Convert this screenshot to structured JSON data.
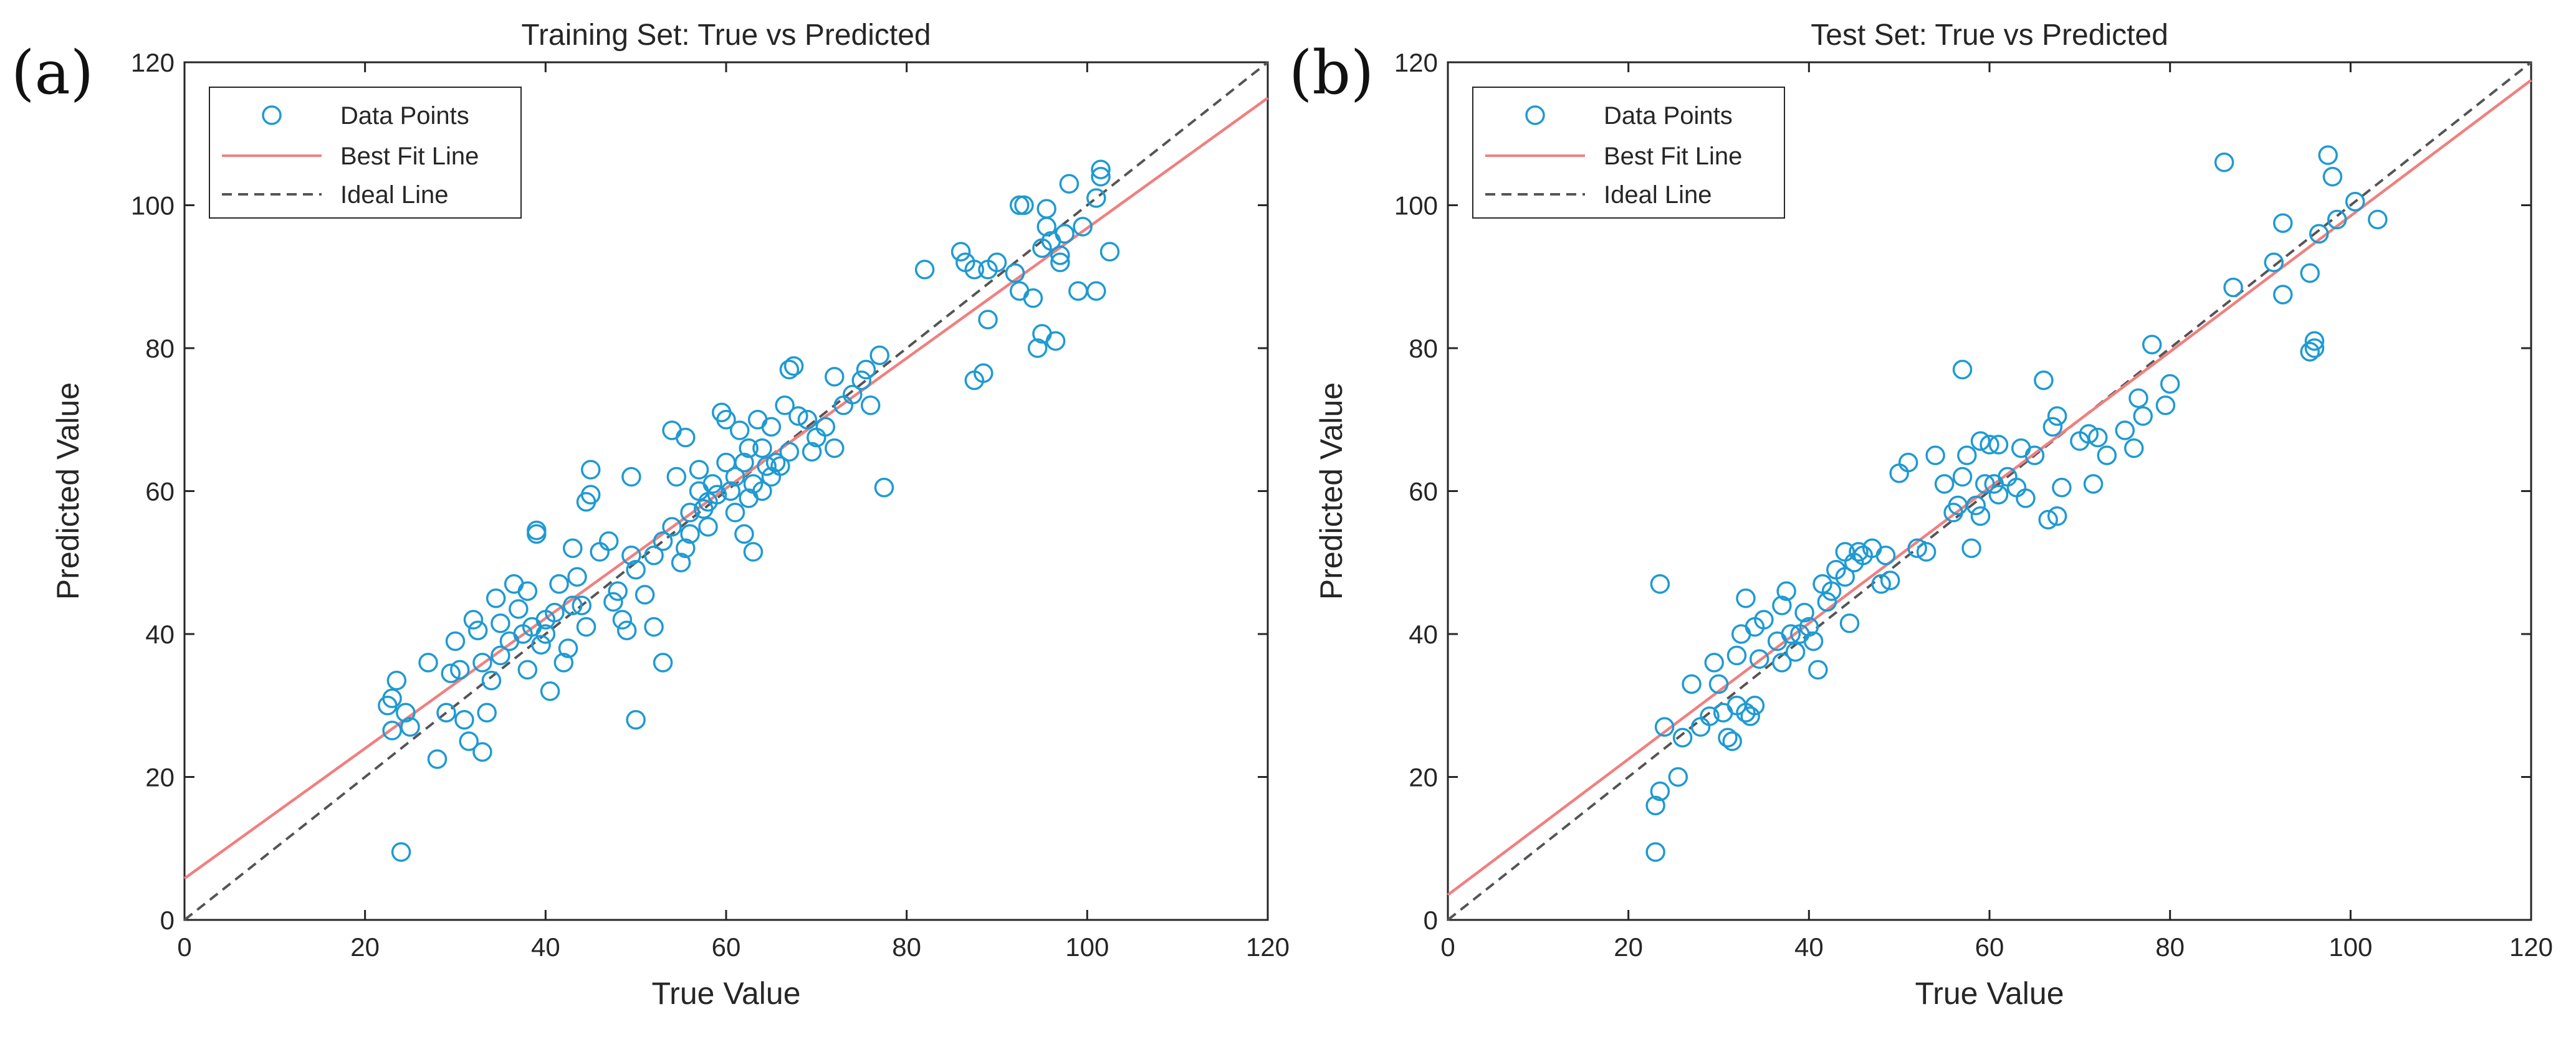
{
  "chart_data": [
    {
      "type": "scatter",
      "panel_label": "(a)",
      "title": "Training Set: True vs Predicted",
      "xlabel": "True Value",
      "ylabel": "Predicted Value",
      "xlim": [
        0,
        120
      ],
      "ylim": [
        0,
        120
      ],
      "xticks": [
        0,
        20,
        40,
        60,
        80,
        100,
        120
      ],
      "yticks": [
        0,
        20,
        40,
        60,
        80,
        100,
        120
      ],
      "legend": {
        "position": "top-left",
        "entries": [
          "Data Points",
          "Best Fit Line",
          "Ideal Line"
        ]
      },
      "colors": {
        "points": "#1f9ad2",
        "best_fit": "#f08080",
        "ideal": "#555555"
      },
      "best_fit": {
        "intercept": 5.8,
        "slope": 0.91
      },
      "ideal": {
        "intercept": 0,
        "slope": 1
      },
      "points": [
        [
          23,
          31
        ],
        [
          22.5,
          30
        ],
        [
          23.5,
          33.5
        ],
        [
          24.5,
          29
        ],
        [
          25,
          27
        ],
        [
          23,
          26.5
        ],
        [
          24,
          9.5
        ],
        [
          27,
          36
        ],
        [
          28,
          22.5
        ],
        [
          29,
          29
        ],
        [
          29.5,
          34.5
        ],
        [
          30,
          39
        ],
        [
          30.5,
          35
        ],
        [
          31,
          28
        ],
        [
          31.5,
          25
        ],
        [
          32,
          42
        ],
        [
          32.5,
          40.5
        ],
        [
          33,
          36
        ],
        [
          33,
          23.5
        ],
        [
          33.5,
          29
        ],
        [
          34,
          33.5
        ],
        [
          34.5,
          45
        ],
        [
          35,
          41.5
        ],
        [
          35,
          37
        ],
        [
          36,
          39
        ],
        [
          36.5,
          47
        ],
        [
          37,
          43.5
        ],
        [
          37.5,
          40
        ],
        [
          38,
          35
        ],
        [
          38,
          46
        ],
        [
          38.5,
          41
        ],
        [
          39,
          54
        ],
        [
          39,
          54.5
        ],
        [
          39.5,
          38.5
        ],
        [
          40,
          42
        ],
        [
          40,
          40
        ],
        [
          40.5,
          32
        ],
        [
          41,
          43
        ],
        [
          41.5,
          47
        ],
        [
          42,
          36
        ],
        [
          42.5,
          38
        ],
        [
          43,
          44
        ],
        [
          43,
          52
        ],
        [
          43.5,
          48
        ],
        [
          44,
          44
        ],
        [
          44.5,
          41
        ],
        [
          44.5,
          58.5
        ],
        [
          45,
          63
        ],
        [
          45,
          59.5
        ],
        [
          46,
          51.5
        ],
        [
          47,
          53
        ],
        [
          47.5,
          44.5
        ],
        [
          48,
          46
        ],
        [
          48.5,
          42
        ],
        [
          49,
          40.5
        ],
        [
          49.5,
          51
        ],
        [
          49.5,
          62
        ],
        [
          50,
          49
        ],
        [
          50,
          28
        ],
        [
          51,
          45.5
        ],
        [
          52,
          41
        ],
        [
          52,
          51
        ],
        [
          53,
          53
        ],
        [
          53,
          36
        ],
        [
          54,
          55
        ],
        [
          54,
          68.5
        ],
        [
          54.5,
          62
        ],
        [
          55,
          50
        ],
        [
          55.5,
          52
        ],
        [
          55.5,
          67.5
        ],
        [
          56,
          57
        ],
        [
          56,
          54
        ],
        [
          57,
          60
        ],
        [
          57,
          63
        ],
        [
          57.5,
          57.5
        ],
        [
          58,
          55
        ],
        [
          58,
          58.5
        ],
        [
          58.5,
          61
        ],
        [
          59,
          59.5
        ],
        [
          59.5,
          71
        ],
        [
          60,
          70
        ],
        [
          60,
          64
        ],
        [
          60.5,
          60
        ],
        [
          61,
          57
        ],
        [
          61,
          62
        ],
        [
          61.5,
          68.5
        ],
        [
          62,
          64
        ],
        [
          62,
          54
        ],
        [
          62.5,
          59
        ],
        [
          62.5,
          66
        ],
        [
          63,
          61
        ],
        [
          63,
          51.5
        ],
        [
          63.5,
          70
        ],
        [
          64,
          66
        ],
        [
          64,
          60
        ],
        [
          64.5,
          63.5
        ],
        [
          65,
          62
        ],
        [
          65,
          69
        ],
        [
          65.5,
          64
        ],
        [
          66,
          63.5
        ],
        [
          66.5,
          72
        ],
        [
          67,
          77
        ],
        [
          67,
          65.5
        ],
        [
          67.5,
          77.5
        ],
        [
          68,
          70.5
        ],
        [
          69,
          70
        ],
        [
          69.5,
          65.5
        ],
        [
          70,
          67.5
        ],
        [
          71,
          69
        ],
        [
          72,
          66
        ],
        [
          72,
          76
        ],
        [
          73,
          72
        ],
        [
          74,
          73.5
        ],
        [
          75,
          75.5
        ],
        [
          75.5,
          77
        ],
        [
          76,
          72
        ],
        [
          77,
          79
        ],
        [
          77.5,
          60.5
        ],
        [
          82,
          91
        ],
        [
          86,
          93.5
        ],
        [
          86.5,
          92
        ],
        [
          87.5,
          91
        ],
        [
          87.5,
          75.5
        ],
        [
          88.5,
          76.5
        ],
        [
          89,
          84
        ],
        [
          89,
          91
        ],
        [
          90,
          92
        ],
        [
          92,
          90.5
        ],
        [
          92.5,
          88
        ],
        [
          92.5,
          100
        ],
        [
          93,
          100
        ],
        [
          94,
          87
        ],
        [
          94.5,
          80
        ],
        [
          95,
          82
        ],
        [
          95,
          94
        ],
        [
          95.5,
          97
        ],
        [
          95.5,
          99.5
        ],
        [
          96,
          95
        ],
        [
          96.5,
          81
        ],
        [
          97,
          93
        ],
        [
          97,
          92
        ],
        [
          97.5,
          96
        ],
        [
          98,
          103
        ],
        [
          99,
          88
        ],
        [
          99.5,
          97
        ],
        [
          101,
          88
        ],
        [
          101,
          101
        ],
        [
          101.5,
          105
        ],
        [
          101.5,
          104
        ],
        [
          102.5,
          93.5
        ]
      ]
    },
    {
      "type": "scatter",
      "panel_label": "(b)",
      "title": "Test Set: True vs Predicted",
      "xlabel": "True Value",
      "ylabel": "Predicted Value",
      "xlim": [
        0,
        120
      ],
      "ylim": [
        0,
        120
      ],
      "xticks": [
        0,
        20,
        40,
        60,
        80,
        100,
        120
      ],
      "yticks": [
        0,
        20,
        40,
        60,
        80,
        100,
        120
      ],
      "legend": {
        "position": "top-left",
        "entries": [
          "Data Points",
          "Best Fit Line",
          "Ideal Line"
        ]
      },
      "colors": {
        "points": "#1f9ad2",
        "best_fit": "#f08080",
        "ideal": "#555555"
      },
      "best_fit": {
        "intercept": 3.5,
        "slope": 0.95
      },
      "ideal": {
        "intercept": 0,
        "slope": 1
      },
      "points": [
        [
          23,
          16
        ],
        [
          23,
          9.5
        ],
        [
          23.5,
          47
        ],
        [
          24,
          27
        ],
        [
          23.5,
          18
        ],
        [
          25.5,
          20
        ],
        [
          26,
          25.5
        ],
        [
          27,
          33
        ],
        [
          28,
          27
        ],
        [
          29,
          28.5
        ],
        [
          29.5,
          36
        ],
        [
          30,
          33
        ],
        [
          30.5,
          29
        ],
        [
          31,
          25.5
        ],
        [
          31.5,
          25
        ],
        [
          32,
          37
        ],
        [
          32,
          30
        ],
        [
          32.5,
          40
        ],
        [
          33,
          45
        ],
        [
          33,
          29
        ],
        [
          33.5,
          28.5
        ],
        [
          34,
          30
        ],
        [
          34,
          41
        ],
        [
          34.5,
          36.5
        ],
        [
          35,
          42
        ],
        [
          36.5,
          39
        ],
        [
          37,
          36
        ],
        [
          37,
          44
        ],
        [
          37.5,
          46
        ],
        [
          38,
          40
        ],
        [
          38.5,
          37.5
        ],
        [
          39,
          40
        ],
        [
          39.5,
          43
        ],
        [
          40,
          41
        ],
        [
          40.5,
          39
        ],
        [
          41,
          35
        ],
        [
          41.5,
          47
        ],
        [
          42,
          44.5
        ],
        [
          42.5,
          46
        ],
        [
          43,
          49
        ],
        [
          44,
          48
        ],
        [
          44,
          51.5
        ],
        [
          44.5,
          41.5
        ],
        [
          45,
          50
        ],
        [
          45.5,
          51.5
        ],
        [
          46,
          51
        ],
        [
          47,
          52
        ],
        [
          48,
          47
        ],
        [
          48.5,
          51
        ],
        [
          49,
          47.5
        ],
        [
          50,
          62.5
        ],
        [
          51,
          64
        ],
        [
          52,
          52
        ],
        [
          53,
          51.5
        ],
        [
          54,
          65
        ],
        [
          55,
          61
        ],
        [
          56,
          57
        ],
        [
          56.5,
          58
        ],
        [
          57,
          77
        ],
        [
          57,
          62
        ],
        [
          57.5,
          65
        ],
        [
          58,
          52
        ],
        [
          58.5,
          58
        ],
        [
          59,
          56.5
        ],
        [
          59,
          67
        ],
        [
          59.5,
          61
        ],
        [
          60,
          66.5
        ],
        [
          60.5,
          61
        ],
        [
          61,
          66.5
        ],
        [
          61,
          59.5
        ],
        [
          62,
          62
        ],
        [
          63,
          60.5
        ],
        [
          63.5,
          66
        ],
        [
          64,
          59
        ],
        [
          65,
          65
        ],
        [
          66,
          75.5
        ],
        [
          66.5,
          56
        ],
        [
          67,
          69
        ],
        [
          67.5,
          70.5
        ],
        [
          67.5,
          56.5
        ],
        [
          68,
          60.5
        ],
        [
          70,
          67
        ],
        [
          71,
          68
        ],
        [
          71.5,
          61
        ],
        [
          72,
          67.5
        ],
        [
          73,
          65
        ],
        [
          75,
          68.5
        ],
        [
          76,
          66
        ],
        [
          76.5,
          73
        ],
        [
          77,
          70.5
        ],
        [
          78,
          80.5
        ],
        [
          79.5,
          72
        ],
        [
          80,
          75
        ],
        [
          86,
          106
        ],
        [
          87,
          88.5
        ],
        [
          91.5,
          92
        ],
        [
          92.5,
          97.5
        ],
        [
          92.5,
          87.5
        ],
        [
          95.5,
          90.5
        ],
        [
          95.5,
          79.5
        ],
        [
          96,
          81
        ],
        [
          96,
          80
        ],
        [
          96.5,
          96
        ],
        [
          97.5,
          107
        ],
        [
          98,
          104
        ],
        [
          98.5,
          98
        ],
        [
          100.5,
          100.5
        ],
        [
          103,
          98
        ]
      ]
    }
  ]
}
